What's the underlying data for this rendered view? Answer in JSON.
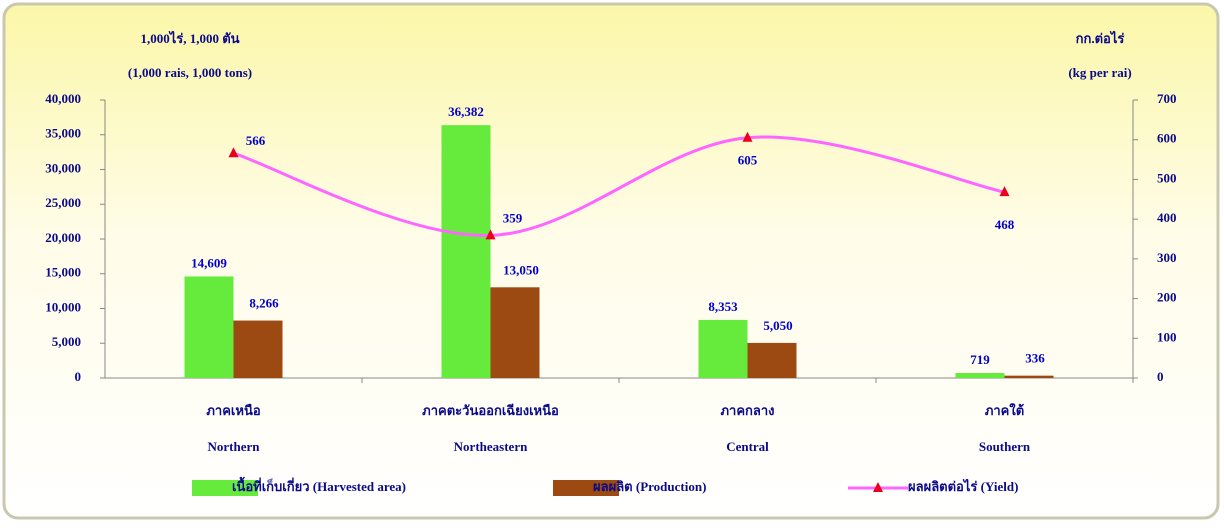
{
  "chart_data": {
    "type": "bar_line",
    "y_label": [
      "1,000ไร่, 1,000 ตัน",
      "(1,000 rais, 1,000 tons)"
    ],
    "y2_label": [
      "กก.ต่อไร่",
      "(kg per rai)"
    ],
    "categories": [
      [
        "ภาคเหนือ",
        "Northern"
      ],
      [
        "ภาคตะวันออกเฉียงเหนือ",
        "Northeastern"
      ],
      [
        "ภาคกลาง",
        "Central"
      ],
      [
        "ภาคใต้",
        "Southern"
      ]
    ],
    "series": [
      {
        "name": "เนื้อที่เก็บเกี่ยว  (Harvested area)",
        "type": "bar",
        "color": "#66ea3c",
        "values": [
          14609,
          36382,
          8353,
          719
        ],
        "value_labels": [
          "14,609",
          "36,382",
          "8,353",
          "719"
        ]
      },
      {
        "name": "ผลผลิต  (Production)",
        "type": "bar",
        "color": "#9c4a12",
        "values": [
          8266,
          13050,
          5050,
          336
        ],
        "value_labels": [
          "8,266",
          "13,050",
          "5,050",
          "336"
        ]
      },
      {
        "name": "ผลผลิตต่อไร่ (Yield)",
        "type": "line",
        "axis": "y2",
        "color": "#ff66ff",
        "marker_color": "#e8001c",
        "values": [
          566,
          359,
          605,
          468
        ]
      }
    ],
    "ylim": [
      0,
      40000
    ],
    "yticks": [
      0,
      {
        "value": 5000,
        "label": "5,000"
      },
      {
        "value": 10000,
        "label": "10,000"
      },
      {
        "value": 15000,
        "label": "15,000"
      },
      {
        "value": 20000,
        "label": "20,000"
      },
      {
        "value": 25000,
        "label": "25,000"
      },
      {
        "value": 30000,
        "label": "30,000"
      },
      {
        "value": 35000,
        "label": "35,000"
      },
      {
        "value": 40000,
        "label": "40,000"
      }
    ],
    "y2lim": [
      0,
      700
    ],
    "y2ticks": [
      0,
      100,
      200,
      300,
      400,
      500,
      600,
      700
    ],
    "legend": "bottom"
  }
}
